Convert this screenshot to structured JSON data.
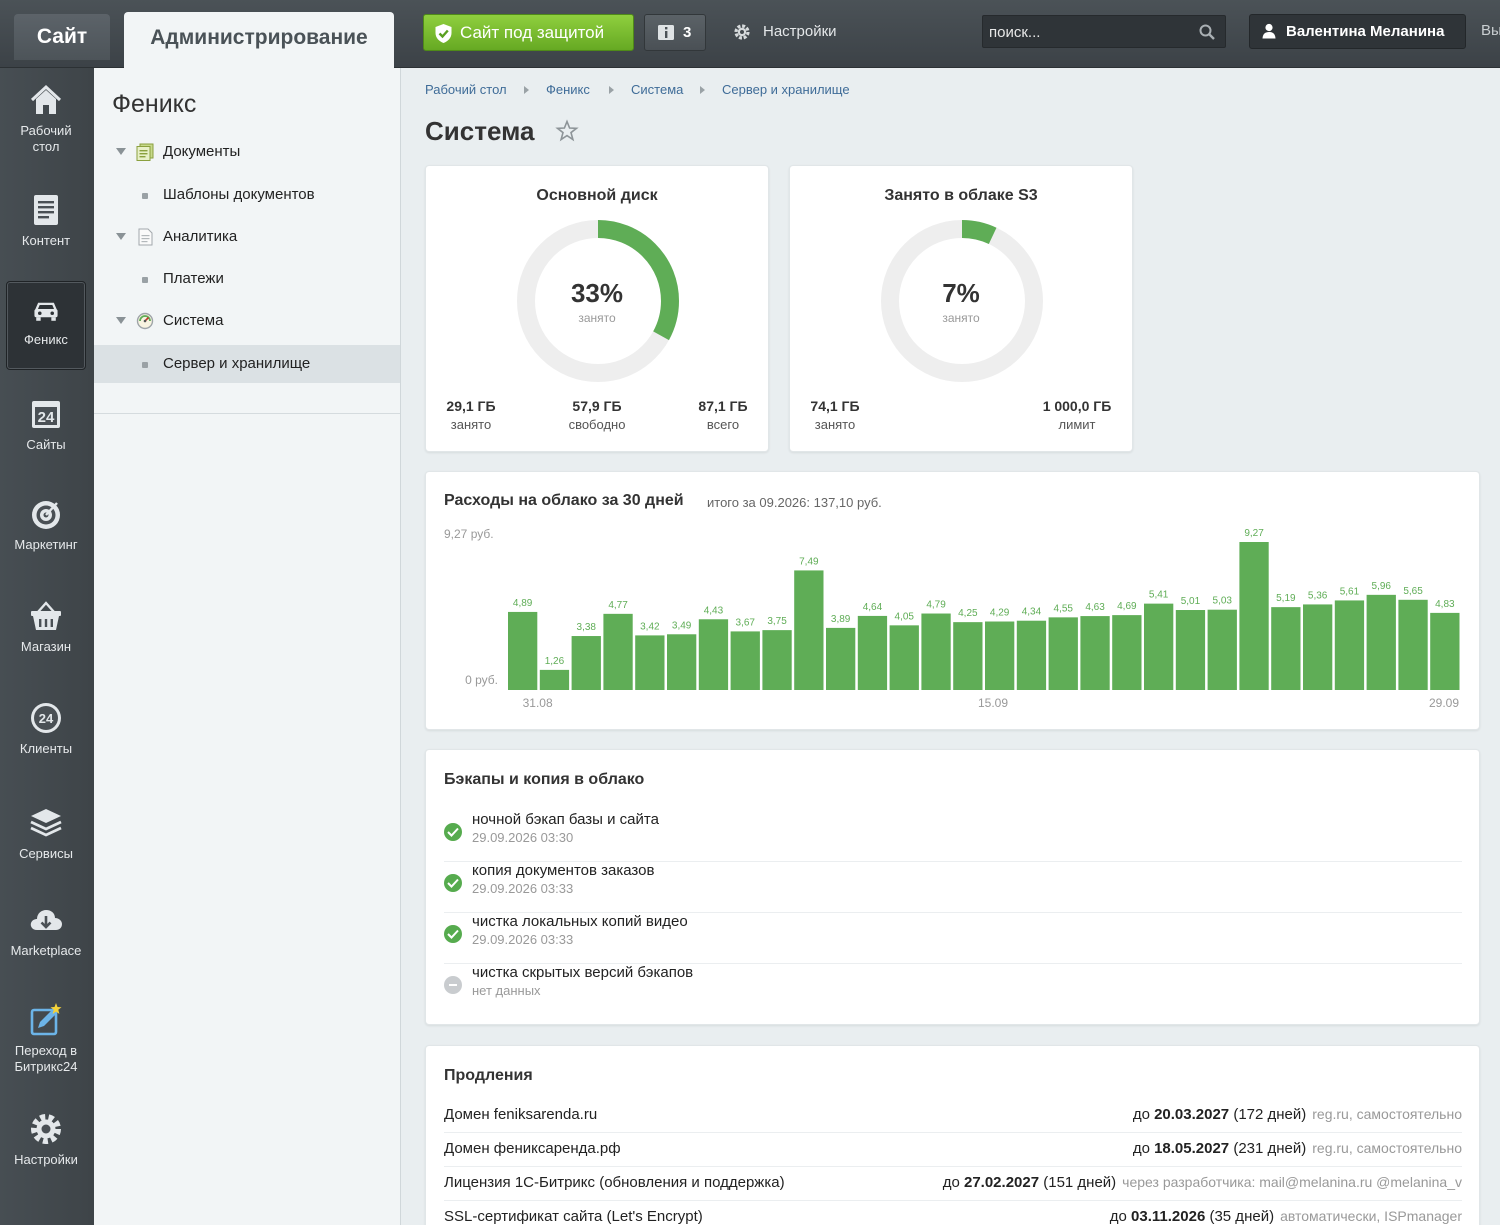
{
  "topbar": {
    "site_tab": "Сайт",
    "admin_tab": "Администрирование",
    "secure_label": "Сайт под защитой",
    "notify_count": "3",
    "settings_label": "Настройки",
    "search_placeholder": "поиск...",
    "user_name": "Валентина Меланина",
    "logout_label": "Вы"
  },
  "leftmenu": [
    {
      "label": "Рабочий стол",
      "icon": "home-icon"
    },
    {
      "label": "Контент",
      "icon": "document-icon"
    },
    {
      "label": "Феникс",
      "icon": "car-icon"
    },
    {
      "label": "Сайты",
      "icon": "calendar-24-icon"
    },
    {
      "label": "Маркетинг",
      "icon": "target-icon"
    },
    {
      "label": "Магазин",
      "icon": "basket-icon"
    },
    {
      "label": "Клиенты",
      "icon": "clients-24-icon"
    },
    {
      "label": "Сервисы",
      "icon": "layers-icon"
    },
    {
      "label": "Marketplace",
      "icon": "cloud-download-icon"
    },
    {
      "label": "Переход в Битрикс24",
      "icon": "edit-star-icon"
    },
    {
      "label": "Настройки",
      "icon": "gear-icon"
    }
  ],
  "tree": {
    "title": "Феникс",
    "items": [
      {
        "label": "Документы"
      },
      {
        "label": "Шаблоны документов"
      },
      {
        "label": "Аналитика"
      },
      {
        "label": "Платежи"
      },
      {
        "label": "Система"
      },
      {
        "label": "Сервер и хранилище"
      }
    ]
  },
  "breadcrumb": [
    "Рабочий стол",
    "Феникс",
    "Система",
    "Сервер и хранилище"
  ],
  "page_title": "Система",
  "disk_main": {
    "title": "Основной диск",
    "percent": 33,
    "percent_label": "33%",
    "sub": "занято",
    "stats": [
      {
        "value": "29,1 ГБ",
        "label": "занято"
      },
      {
        "value": "57,9 ГБ",
        "label": "свободно"
      },
      {
        "value": "87,1 ГБ",
        "label": "всего"
      }
    ]
  },
  "disk_cloud": {
    "title": "Занято в облаке S3",
    "percent": 7,
    "percent_label": "7%",
    "sub": "занято",
    "stats": [
      {
        "value": "74,1 ГБ",
        "label": "занято"
      },
      {
        "value": "1 000,0 ГБ",
        "label": "лимит"
      }
    ]
  },
  "colors": {
    "accent_green": "#5fad56",
    "donut_track": "#eeeeee"
  },
  "expenses": {
    "title": "Расходы на облако за 30 дней",
    "subtitle": "итого за 09.2026: 137,10 руб.",
    "chart_data": {
      "type": "bar",
      "title": "Расходы на облако за 30 дней",
      "y_top_label": "9,27 руб.",
      "y_bottom_label": "0 руб.",
      "ylim": [
        0,
        9.27
      ],
      "x_tick_labels": [
        "31.08",
        "15.09",
        "29.09"
      ],
      "values": [
        4.89,
        1.26,
        3.38,
        4.77,
        3.42,
        3.49,
        4.43,
        3.67,
        3.75,
        7.49,
        3.89,
        4.64,
        4.05,
        4.79,
        4.25,
        4.29,
        4.34,
        4.55,
        4.63,
        4.69,
        5.41,
        5.01,
        5.03,
        9.27,
        5.19,
        5.36,
        5.61,
        5.96,
        5.65,
        4.83
      ],
      "value_labels": [
        "4,89",
        "1,26",
        "3,38",
        "4,77",
        "3,42",
        "3,49",
        "4,43",
        "3,67",
        "3,75",
        "7,49",
        "3,89",
        "4,64",
        "4,05",
        "4,79",
        "4,25",
        "4,29",
        "4,34",
        "4,55",
        "4,63",
        "4,69",
        "5,41",
        "5,01",
        "5,03",
        "9,27",
        "5,19",
        "5,36",
        "5,61",
        "5,96",
        "5,65",
        "4,83"
      ],
      "grid": false,
      "legend": "none"
    }
  },
  "backups": {
    "title": "Бэкапы и копия в облако",
    "items": [
      {
        "name": "ночной бэкап базы и сайта",
        "date": "29.09.2026 03:30",
        "status": "ok"
      },
      {
        "name": "копия документов заказов",
        "date": "29.09.2026 03:33",
        "status": "ok"
      },
      {
        "name": "чистка локальных копий видео",
        "date": "29.09.2026 03:33",
        "status": "ok"
      },
      {
        "name": "чистка скрытых версий бэкапов",
        "date": "нет данных",
        "status": "none"
      }
    ]
  },
  "renewals": {
    "title": "Продления",
    "items": [
      {
        "name": "Домен feniksarenda.ru",
        "prefix": "до ",
        "date": "20.03.2027",
        "days": " (172 дней)",
        "note": "reg.ru, самостоятельно"
      },
      {
        "name": "Домен фениксаренда.рф",
        "prefix": "до ",
        "date": "18.05.2027",
        "days": " (231 дней)",
        "note": "reg.ru, самостоятельно"
      },
      {
        "name": "Лицензия 1С-Битрикс (обновления и поддержка)",
        "prefix": "до ",
        "date": "27.02.2027",
        "days": " (151 дней)",
        "note": "через разработчика: mail@melanina.ru @melanina_v"
      },
      {
        "name": "SSL-сертификат сайта (Let's Encrypt)",
        "prefix": "до ",
        "date": "03.11.2026",
        "days": " (35 дней)",
        "note": "автоматически, ISPmanager"
      }
    ]
  }
}
